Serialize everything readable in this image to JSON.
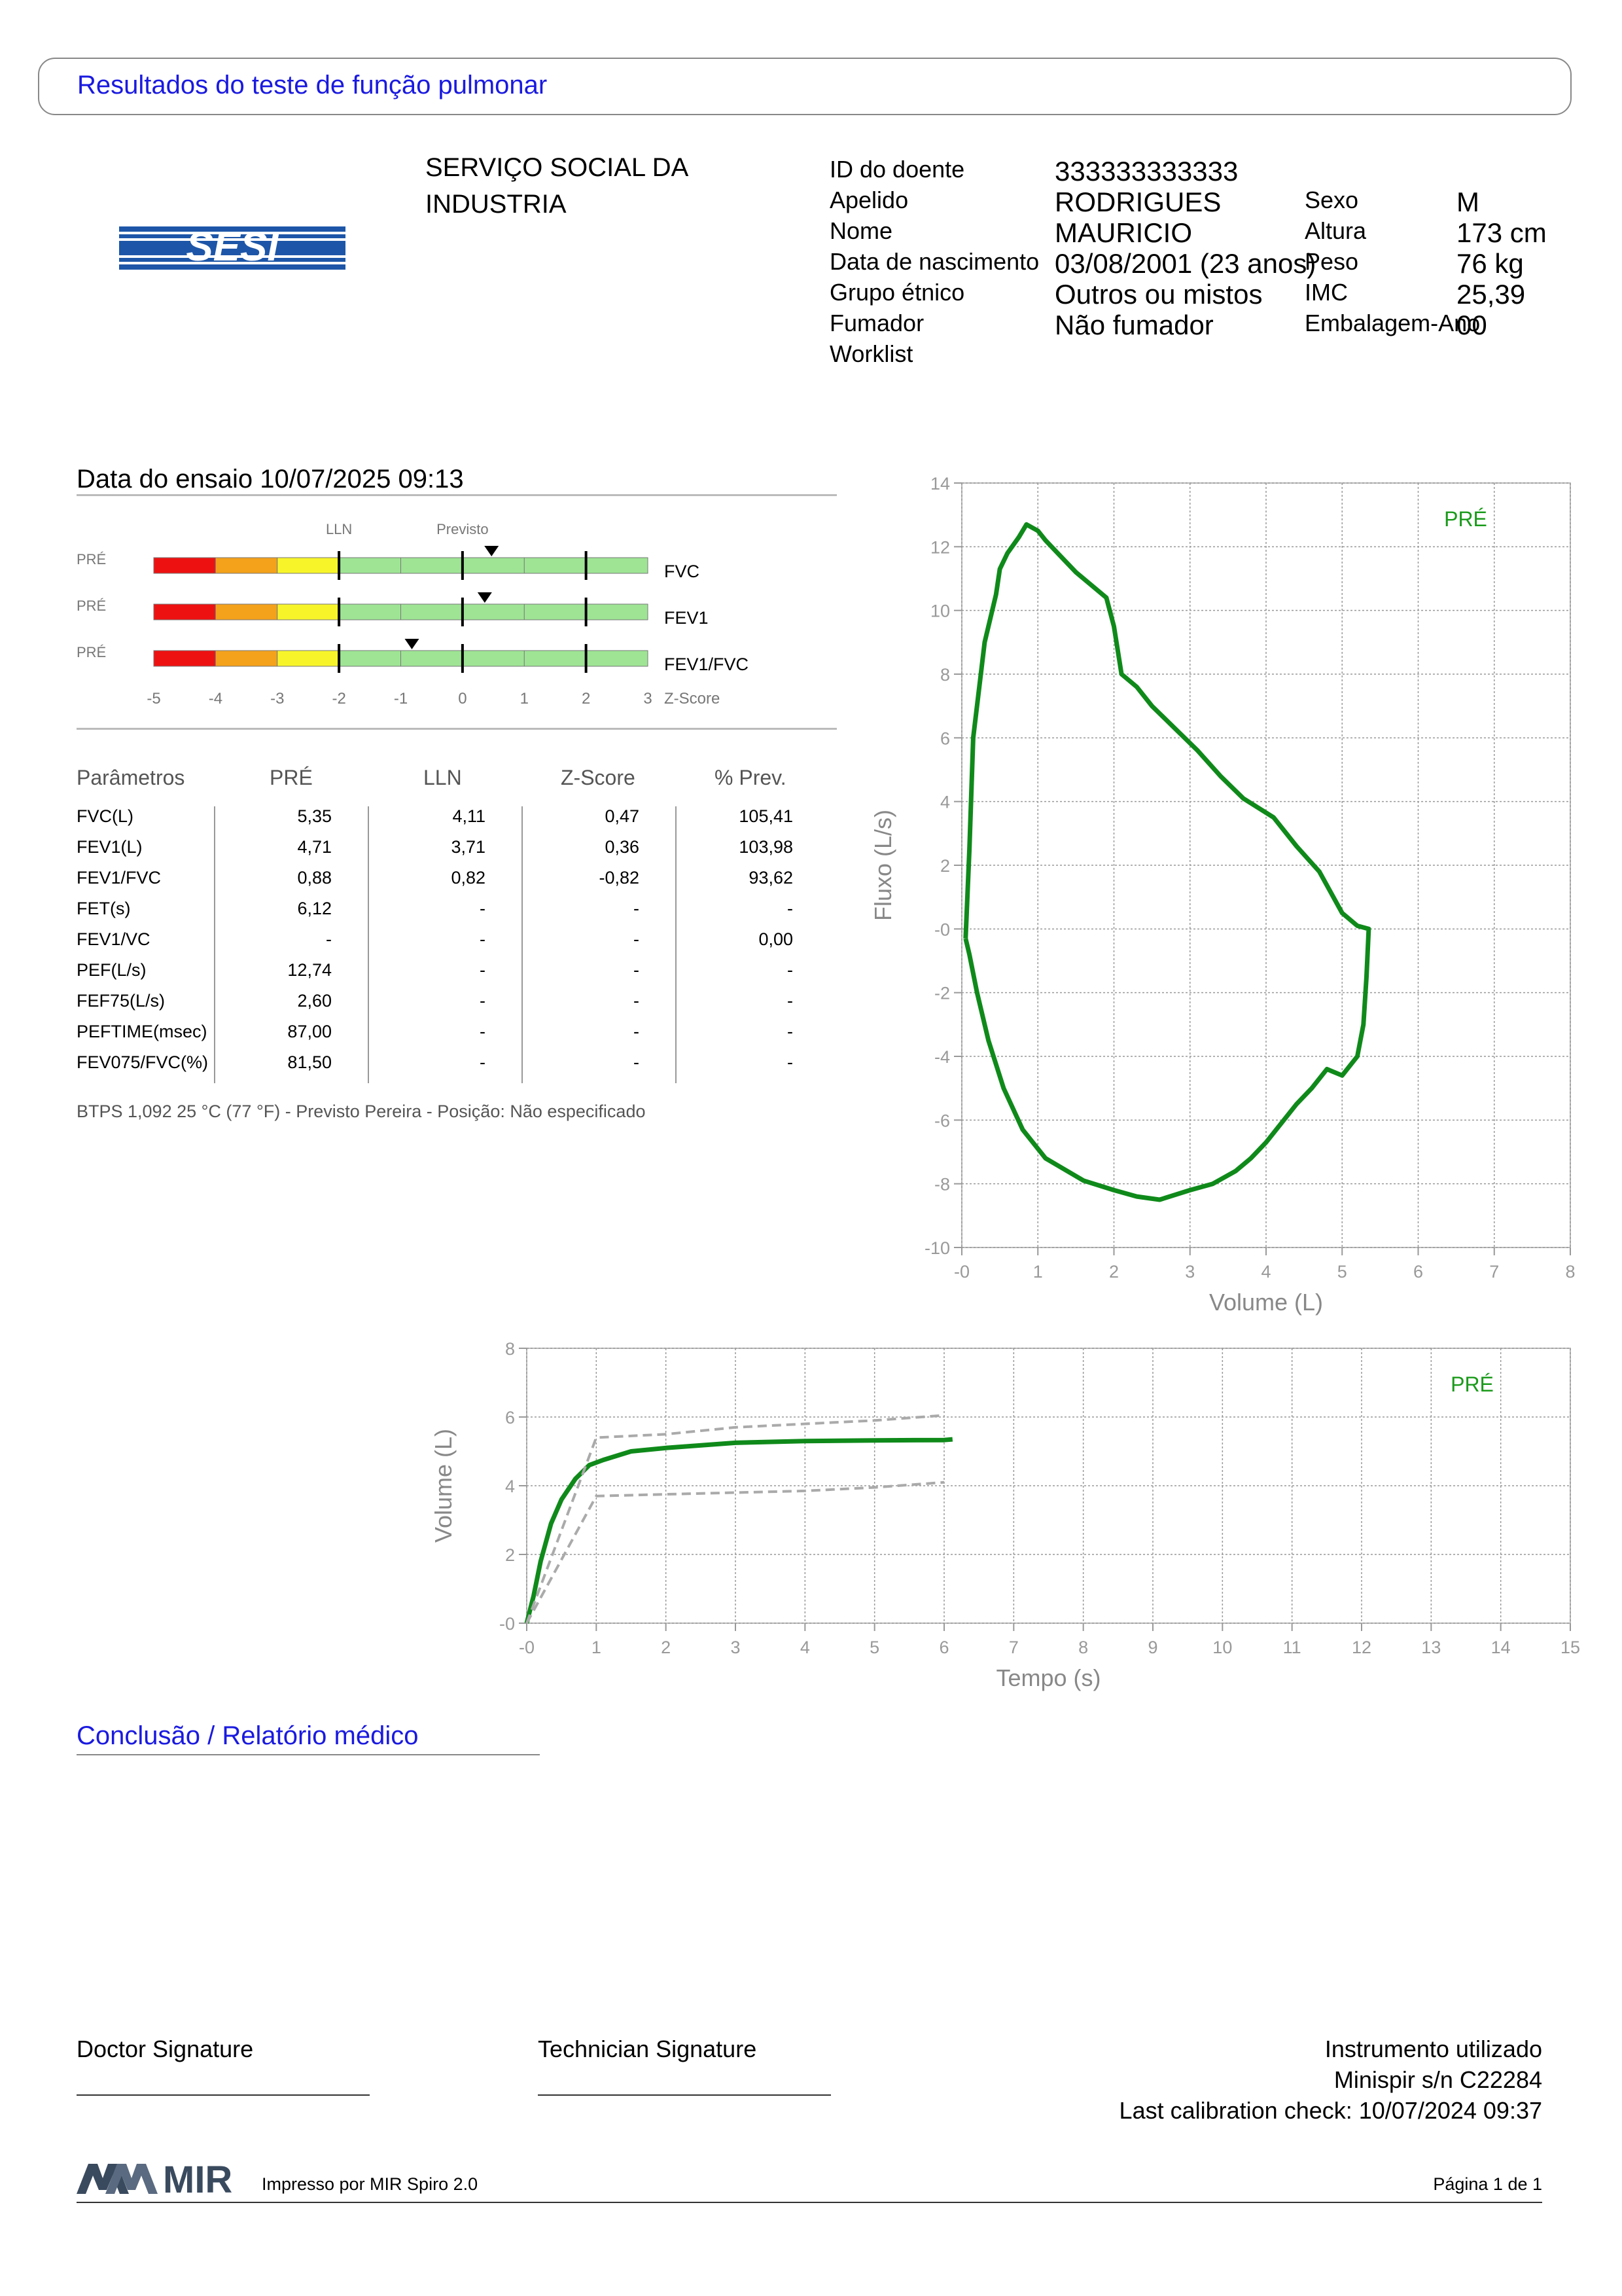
{
  "page_title": "Resultados do teste de função pulmonar",
  "logo_text": "SESI",
  "organization": [
    "SERVIÇO SOCIAL DA",
    "INDUSTRIA"
  ],
  "patient": {
    "id_label": "ID do doente",
    "id": "333333333333",
    "surname_label": "Apelido",
    "surname": "RODRIGUES",
    "name_label": "Nome",
    "name": "MAURICIO",
    "dob_label": "Data de nascimento",
    "dob": "03/08/2001 (23 anos)",
    "ethnic_label": "Grupo étnico",
    "ethnic": "Outros ou mistos",
    "smoker_label": "Fumador",
    "smoker": "Não fumador",
    "worklist_label": "Worklist",
    "sex_label": "Sexo",
    "sex": "M",
    "height_label": "Altura",
    "height": "173 cm",
    "weight_label": "Peso",
    "weight": "76 kg",
    "bmi_label": "IMC",
    "bmi": "25,39",
    "pack_label": "Embalagem-Ano",
    "pack": "00"
  },
  "test_date": "Data do ensaio 10/07/2025 09:13",
  "zscore_panel": {
    "lln_label": "LLN",
    "pred_label": "Previsto",
    "row_label": "PRÉ",
    "rows": [
      {
        "name": "FVC",
        "z": 0.47
      },
      {
        "name": "FEV1",
        "z": 0.36
      },
      {
        "name": "FEV1/FVC",
        "z": -0.82
      }
    ],
    "axis_ticks": [
      "-5",
      "-4",
      "-3",
      "-2",
      "-1",
      "0",
      "1",
      "2",
      "3"
    ],
    "axis_label": "Z-Score",
    "zmin": -5,
    "zmax": 3
  },
  "params": {
    "headers": [
      "Parâmetros",
      "PRÉ",
      "LLN",
      "Z-Score",
      "% Prev."
    ],
    "rows": [
      [
        "FVC(L)",
        "5,35",
        "4,11",
        "0,47",
        "105,41"
      ],
      [
        "FEV1(L)",
        "4,71",
        "3,71",
        "0,36",
        "103,98"
      ],
      [
        "FEV1/FVC",
        "0,88",
        "0,82",
        "-0,82",
        "93,62"
      ],
      [
        "FET(s)",
        "6,12",
        "-",
        "-",
        "-"
      ],
      [
        "FEV1/VC",
        "-",
        "-",
        "-",
        "0,00"
      ],
      [
        "PEF(L/s)",
        "12,74",
        "-",
        "-",
        "-"
      ],
      [
        "FEF75(L/s)",
        "2,60",
        "-",
        "-",
        "-"
      ],
      [
        "PEFTIME(msec)",
        "87,00",
        "-",
        "-",
        "-"
      ],
      [
        "FEV075/FVC(%)",
        "81,50",
        "-",
        "-",
        "-"
      ]
    ],
    "footnote": "BTPS 1,092 25 °C (77 °F) - Previsto Pereira - Posição: Não especificado"
  },
  "chart_data": [
    {
      "type": "line",
      "title": "",
      "xlabel": "Volume (L)",
      "ylabel": "Fluxo (L/s)",
      "legend": "PRÉ",
      "xlim": [
        0,
        8
      ],
      "ylim": [
        -10,
        14
      ],
      "x_ticks": [
        "-0",
        "1",
        "2",
        "3",
        "4",
        "5",
        "6",
        "7",
        "8"
      ],
      "y_ticks": [
        "14",
        "12",
        "10",
        "8",
        "6",
        "4",
        "2",
        "-0",
        "-2",
        "-4",
        "-6",
        "-8",
        "-10"
      ],
      "grid": true,
      "series": [
        {
          "name": "PRÉ",
          "points": [
            [
              0.05,
              -0.3
            ],
            [
              0.1,
              2.5
            ],
            [
              0.15,
              6
            ],
            [
              0.3,
              9
            ],
            [
              0.45,
              10.5
            ],
            [
              0.5,
              11.3
            ],
            [
              0.6,
              11.8
            ],
            [
              0.75,
              12.3
            ],
            [
              0.85,
              12.7
            ],
            [
              1.0,
              12.5
            ],
            [
              1.1,
              12.2
            ],
            [
              1.3,
              11.7
            ],
            [
              1.5,
              11.2
            ],
            [
              1.7,
              10.8
            ],
            [
              1.9,
              10.4
            ],
            [
              2.0,
              9.5
            ],
            [
              2.1,
              8.0
            ],
            [
              2.3,
              7.6
            ],
            [
              2.5,
              7.0
            ],
            [
              2.8,
              6.3
            ],
            [
              3.1,
              5.6
            ],
            [
              3.4,
              4.8
            ],
            [
              3.7,
              4.1
            ],
            [
              4.1,
              3.5
            ],
            [
              4.4,
              2.6
            ],
            [
              4.7,
              1.8
            ],
            [
              5.0,
              0.5
            ],
            [
              5.2,
              0.1
            ],
            [
              5.35,
              0.0
            ],
            [
              5.32,
              -1.5
            ],
            [
              5.28,
              -3.0
            ],
            [
              5.2,
              -4.0
            ],
            [
              5.0,
              -4.6
            ],
            [
              4.8,
              -4.4
            ],
            [
              4.6,
              -5.0
            ],
            [
              4.4,
              -5.5
            ],
            [
              4.2,
              -6.1
            ],
            [
              4.0,
              -6.7
            ],
            [
              3.8,
              -7.2
            ],
            [
              3.6,
              -7.6
            ],
            [
              3.3,
              -8.0
            ],
            [
              3.0,
              -8.2
            ],
            [
              2.6,
              -8.5
            ],
            [
              2.3,
              -8.4
            ],
            [
              2.0,
              -8.2
            ],
            [
              1.6,
              -7.9
            ],
            [
              1.1,
              -7.2
            ],
            [
              0.8,
              -6.3
            ],
            [
              0.55,
              -5.0
            ],
            [
              0.35,
              -3.5
            ],
            [
              0.2,
              -2.0
            ],
            [
              0.1,
              -0.8
            ],
            [
              0.05,
              -0.3
            ]
          ]
        }
      ]
    },
    {
      "type": "line",
      "title": "",
      "xlabel": "Tempo (s)",
      "ylabel": "Volume (L)",
      "legend": "PRÉ",
      "xlim": [
        0,
        15
      ],
      "ylim": [
        0,
        8
      ],
      "x_ticks": [
        "-0",
        "1",
        "2",
        "3",
        "4",
        "5",
        "6",
        "7",
        "8",
        "9",
        "10",
        "11",
        "12",
        "13",
        "14",
        "15"
      ],
      "y_ticks": [
        "8",
        "6",
        "4",
        "2",
        "-0"
      ],
      "grid": true,
      "series": [
        {
          "name": "PRÉ",
          "points": [
            [
              0,
              0
            ],
            [
              0.1,
              0.8
            ],
            [
              0.2,
              1.8
            ],
            [
              0.35,
              2.9
            ],
            [
              0.5,
              3.6
            ],
            [
              0.7,
              4.2
            ],
            [
              0.9,
              4.6
            ],
            [
              1.1,
              4.75
            ],
            [
              1.5,
              5.0
            ],
            [
              2,
              5.1
            ],
            [
              3,
              5.25
            ],
            [
              4,
              5.3
            ],
            [
              5,
              5.32
            ],
            [
              6,
              5.33
            ],
            [
              6.12,
              5.35
            ]
          ]
        },
        {
          "name": "",
          "style": "dashed",
          "points": [
            [
              0,
              0
            ],
            [
              1,
              5.4
            ],
            [
              2,
              5.5
            ],
            [
              3,
              5.7
            ],
            [
              4,
              5.8
            ],
            [
              5,
              5.9
            ],
            [
              6,
              6.05
            ]
          ]
        },
        {
          "name": "",
          "style": "dashed",
          "points": [
            [
              0,
              0
            ],
            [
              1,
              3.7
            ],
            [
              2,
              3.75
            ],
            [
              3,
              3.8
            ],
            [
              4,
              3.85
            ],
            [
              5,
              3.95
            ],
            [
              6,
              4.1
            ]
          ]
        }
      ]
    }
  ],
  "conclusion_title": "Conclusão / Relatório médico",
  "footer": {
    "doctor_sig": "Doctor Signature",
    "tech_sig": "Technician Signature",
    "instrument_title": "Instrumento utilizado",
    "instrument": "Minispir s/n C22284",
    "calibration": "Last calibration check: 10/07/2024 09:37",
    "mir_logo": "MIR",
    "printed_by": "Impresso por MIR Spiro 2.0",
    "page": "Página 1 de 1"
  },
  "colors": {
    "accent": "#1a1ae0",
    "curve": "#0f8a1a",
    "legend": "#1a9a1a"
  }
}
